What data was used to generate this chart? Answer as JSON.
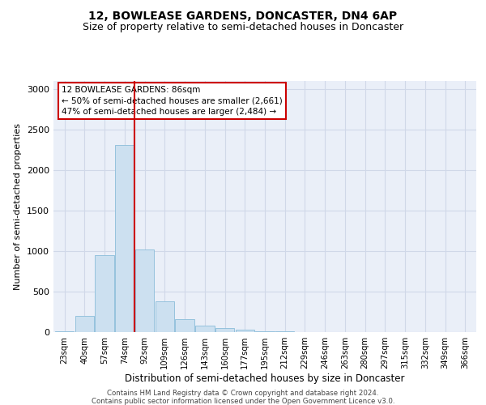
{
  "title": "12, BOWLEASE GARDENS, DONCASTER, DN4 6AP",
  "subtitle": "Size of property relative to semi-detached houses in Doncaster",
  "xlabel": "Distribution of semi-detached houses by size in Doncaster",
  "ylabel": "Number of semi-detached properties",
  "footer_line1": "Contains HM Land Registry data © Crown copyright and database right 2024.",
  "footer_line2": "Contains public sector information licensed under the Open Government Licence v3.0.",
  "bar_labels": [
    "23sqm",
    "40sqm",
    "57sqm",
    "74sqm",
    "92sqm",
    "109sqm",
    "126sqm",
    "143sqm",
    "160sqm",
    "177sqm",
    "195sqm",
    "212sqm",
    "229sqm",
    "246sqm",
    "263sqm",
    "280sqm",
    "297sqm",
    "315sqm",
    "332sqm",
    "349sqm",
    "366sqm"
  ],
  "bar_values": [
    10,
    200,
    950,
    2310,
    1020,
    380,
    165,
    80,
    52,
    35,
    15,
    8,
    5,
    3,
    2,
    1,
    1,
    1,
    0,
    0,
    0
  ],
  "bar_color": "#cce0f0",
  "bar_edge_color": "#8bbdd9",
  "vline_color": "#cc0000",
  "vline_x_index": 4,
  "annotation_title": "12 BOWLEASE GARDENS: 86sqm",
  "annotation_line1": "← 50% of semi-detached houses are smaller (2,661)",
  "annotation_line2": "47% of semi-detached houses are larger (2,484) →",
  "annotation_box_color": "#cc0000",
  "ylim": [
    0,
    3100
  ],
  "yticks": [
    0,
    500,
    1000,
    1500,
    2000,
    2500,
    3000
  ],
  "grid_color": "#d0d8e8",
  "bg_color": "#eaeff8",
  "title_fontsize": 10,
  "subtitle_fontsize": 9
}
